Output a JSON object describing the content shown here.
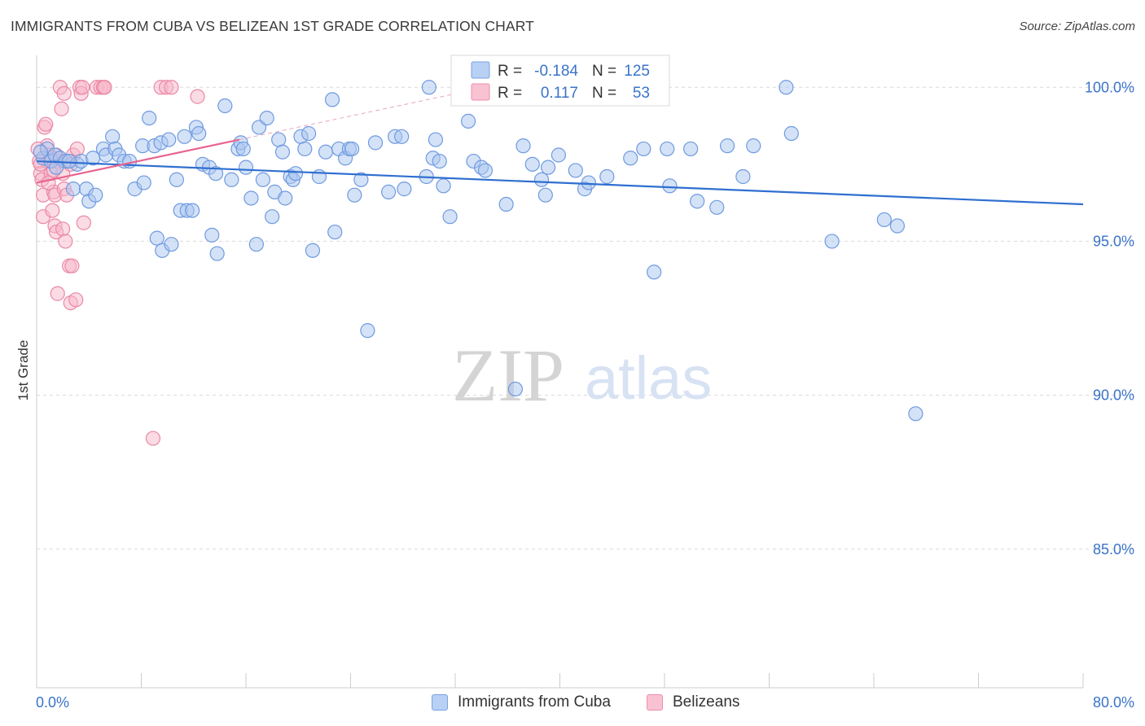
{
  "title": "IMMIGRANTS FROM CUBA VS BELIZEAN 1ST GRADE CORRELATION CHART",
  "source": "Source: ZipAtlas.com",
  "watermark": {
    "zip": "ZIP",
    "atlas": "atlas"
  },
  "colors": {
    "blue_fill": "#a9c6f0",
    "blue_stroke": "#6f9ae0",
    "blue_line": "#2f6fd0",
    "pink_fill": "#f7b7ca",
    "pink_stroke": "#ea88a6",
    "pink_line": "#e8648f",
    "axis_label": "#3a73c9",
    "grid": "#d9d9d9"
  },
  "legend_box": {
    "rows": [
      {
        "series": "cuba",
        "r_label": "R =",
        "r_value": "-0.184",
        "n_label": "N =",
        "n_value": "125"
      },
      {
        "series": "belizeans",
        "r_label": "R =",
        "r_value": "0.117",
        "n_label": "N =",
        "n_value": "53"
      }
    ]
  },
  "chart_data": {
    "type": "scatter",
    "title": "IMMIGRANTS FROM CUBA VS BELIZEAN 1ST GRADE CORRELATION CHART",
    "xlabel": "",
    "ylabel": "1st Grade",
    "xlim": [
      0,
      80
    ],
    "ylim": [
      80.5,
      100.8
    ],
    "x_tick_labels": [
      "0.0%",
      "80.0%"
    ],
    "y_ticks": [
      85,
      90,
      95,
      100
    ],
    "y_tick_labels": [
      "85.0%",
      "90.0%",
      "95.0%",
      "100.0%"
    ],
    "grid": true,
    "series": [
      {
        "name": "Immigrants from Cuba",
        "key": "cuba",
        "R": -0.184,
        "N": 125,
        "trend": {
          "x": [
            0,
            80
          ],
          "y": [
            97.6,
            96.2
          ]
        },
        "points": [
          [
            0.5,
            97.7
          ],
          [
            0.8,
            98.0
          ],
          [
            1.1,
            97.6
          ],
          [
            1.4,
            97.8
          ],
          [
            1.8,
            97.7
          ],
          [
            2.2,
            97.6
          ],
          [
            2.8,
            96.7
          ],
          [
            3.1,
            97.5
          ],
          [
            3.4,
            97.6
          ],
          [
            3.8,
            96.7
          ],
          [
            4.0,
            96.3
          ],
          [
            4.3,
            97.7
          ],
          [
            4.5,
            96.5
          ],
          [
            5.1,
            98.0
          ],
          [
            5.3,
            97.8
          ],
          [
            5.8,
            98.4
          ],
          [
            6.0,
            98.0
          ],
          [
            6.3,
            97.8
          ],
          [
            6.7,
            97.6
          ],
          [
            7.1,
            97.6
          ],
          [
            7.5,
            96.7
          ],
          [
            8.1,
            98.1
          ],
          [
            8.2,
            96.9
          ],
          [
            8.6,
            99.0
          ],
          [
            9.0,
            98.1
          ],
          [
            9.2,
            95.1
          ],
          [
            9.5,
            98.2
          ],
          [
            9.6,
            94.7
          ],
          [
            10.1,
            98.3
          ],
          [
            10.3,
            94.9
          ],
          [
            10.7,
            97.0
          ],
          [
            11.0,
            96.0
          ],
          [
            11.3,
            98.4
          ],
          [
            11.5,
            96.0
          ],
          [
            11.9,
            96.0
          ],
          [
            12.2,
            98.7
          ],
          [
            12.4,
            98.5
          ],
          [
            12.7,
            97.5
          ],
          [
            13.2,
            97.4
          ],
          [
            13.4,
            95.2
          ],
          [
            13.7,
            97.2
          ],
          [
            13.8,
            94.6
          ],
          [
            14.4,
            99.4
          ],
          [
            14.9,
            97.0
          ],
          [
            15.4,
            98.0
          ],
          [
            15.6,
            98.2
          ],
          [
            15.8,
            98.0
          ],
          [
            16.0,
            97.4
          ],
          [
            16.4,
            96.4
          ],
          [
            16.8,
            94.9
          ],
          [
            17.0,
            98.7
          ],
          [
            17.3,
            97.0
          ],
          [
            17.6,
            99.0
          ],
          [
            18.0,
            95.8
          ],
          [
            18.2,
            96.6
          ],
          [
            18.5,
            98.3
          ],
          [
            18.8,
            97.9
          ],
          [
            19.0,
            96.4
          ],
          [
            19.4,
            97.1
          ],
          [
            19.6,
            97.0
          ],
          [
            19.8,
            97.2
          ],
          [
            20.2,
            98.4
          ],
          [
            20.5,
            98.0
          ],
          [
            20.8,
            98.5
          ],
          [
            21.1,
            94.7
          ],
          [
            21.6,
            97.1
          ],
          [
            22.1,
            97.9
          ],
          [
            22.6,
            99.6
          ],
          [
            22.8,
            95.3
          ],
          [
            23.1,
            98.0
          ],
          [
            23.6,
            97.7
          ],
          [
            23.9,
            98.0
          ],
          [
            24.1,
            98.0
          ],
          [
            24.3,
            96.5
          ],
          [
            24.8,
            97.0
          ],
          [
            25.3,
            92.1
          ],
          [
            25.9,
            98.2
          ],
          [
            26.9,
            96.6
          ],
          [
            27.4,
            98.4
          ],
          [
            27.9,
            98.4
          ],
          [
            28.1,
            96.7
          ],
          [
            29.8,
            97.1
          ],
          [
            30.0,
            100.0
          ],
          [
            30.3,
            97.7
          ],
          [
            30.5,
            98.3
          ],
          [
            30.8,
            97.6
          ],
          [
            31.1,
            96.8
          ],
          [
            31.6,
            95.8
          ],
          [
            33.0,
            98.9
          ],
          [
            33.4,
            97.6
          ],
          [
            34.0,
            97.4
          ],
          [
            34.3,
            97.3
          ],
          [
            35.0,
            100.0
          ],
          [
            35.9,
            96.2
          ],
          [
            36.6,
            90.2
          ],
          [
            37.2,
            98.1
          ],
          [
            37.9,
            97.5
          ],
          [
            38.6,
            97.0
          ],
          [
            38.9,
            96.5
          ],
          [
            39.1,
            97.4
          ],
          [
            39.9,
            97.8
          ],
          [
            41.2,
            97.3
          ],
          [
            41.9,
            96.7
          ],
          [
            42.2,
            96.9
          ],
          [
            43.6,
            97.1
          ],
          [
            45.4,
            97.7
          ],
          [
            46.4,
            98.0
          ],
          [
            47.2,
            94.0
          ],
          [
            48.2,
            98.0
          ],
          [
            48.4,
            96.8
          ],
          [
            50.0,
            98.0
          ],
          [
            50.5,
            96.3
          ],
          [
            52.0,
            96.1
          ],
          [
            52.8,
            98.1
          ],
          [
            54.0,
            97.1
          ],
          [
            54.8,
            98.1
          ],
          [
            57.3,
            100.0
          ],
          [
            57.7,
            98.5
          ],
          [
            60.8,
            95.0
          ],
          [
            64.8,
            95.7
          ],
          [
            65.8,
            95.5
          ],
          [
            67.2,
            89.4
          ],
          [
            0.3,
            97.9
          ],
          [
            1.5,
            97.4
          ],
          [
            2.5,
            97.6
          ]
        ]
      },
      {
        "name": "Belizeans",
        "key": "belizeans",
        "R": 0.117,
        "N": 53,
        "trend": {
          "x": [
            0,
            15.5
          ],
          "y": [
            96.9,
            98.3
          ]
        },
        "points": [
          [
            0.2,
            97.6
          ],
          [
            0.3,
            97.2
          ],
          [
            0.4,
            97.0
          ],
          [
            0.5,
            96.5
          ],
          [
            0.5,
            95.8
          ],
          [
            0.6,
            98.7
          ],
          [
            0.7,
            98.8
          ],
          [
            0.8,
            98.1
          ],
          [
            0.9,
            97.6
          ],
          [
            1.0,
            97.8
          ],
          [
            1.1,
            97.7
          ],
          [
            1.1,
            97.2
          ],
          [
            1.2,
            96.0
          ],
          [
            1.3,
            96.6
          ],
          [
            1.4,
            96.5
          ],
          [
            1.4,
            95.5
          ],
          [
            1.5,
            97.8
          ],
          [
            1.5,
            95.3
          ],
          [
            1.6,
            93.3
          ],
          [
            1.7,
            97.6
          ],
          [
            1.8,
            100.0
          ],
          [
            1.9,
            99.3
          ],
          [
            2.0,
            95.4
          ],
          [
            2.0,
            97.2
          ],
          [
            2.1,
            96.7
          ],
          [
            2.1,
            99.8
          ],
          [
            2.2,
            95.0
          ],
          [
            2.3,
            96.5
          ],
          [
            2.4,
            97.6
          ],
          [
            2.5,
            94.2
          ],
          [
            2.6,
            93.0
          ],
          [
            2.6,
            97.5
          ],
          [
            2.7,
            94.2
          ],
          [
            2.8,
            97.8
          ],
          [
            3.0,
            93.1
          ],
          [
            3.1,
            98.0
          ],
          [
            3.3,
            100.0
          ],
          [
            3.4,
            99.8
          ],
          [
            3.5,
            100.0
          ],
          [
            3.6,
            95.6
          ],
          [
            4.6,
            100.0
          ],
          [
            4.9,
            100.0
          ],
          [
            5.1,
            100.0
          ],
          [
            5.2,
            100.0
          ],
          [
            8.9,
            88.6
          ],
          [
            9.5,
            100.0
          ],
          [
            9.9,
            100.0
          ],
          [
            10.3,
            100.0
          ],
          [
            12.3,
            99.7
          ],
          [
            0.1,
            98.0
          ],
          [
            0.3,
            97.5
          ],
          [
            0.9,
            96.9
          ],
          [
            1.3,
            97.3
          ]
        ]
      }
    ]
  },
  "legend_bottom": [
    {
      "key": "cuba",
      "label": "Immigrants from Cuba"
    },
    {
      "key": "belizeans",
      "label": "Belizeans"
    }
  ]
}
